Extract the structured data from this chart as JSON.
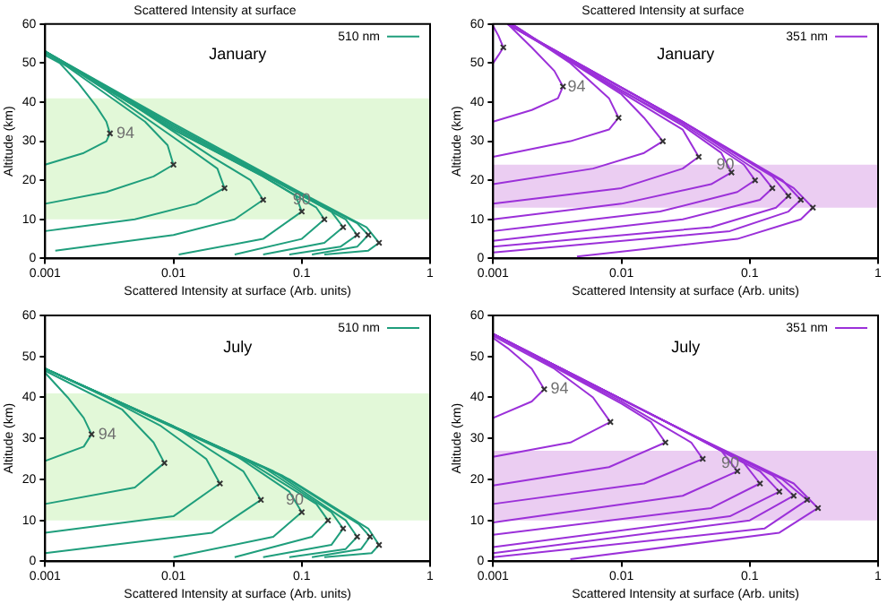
{
  "chart_data": [
    {
      "type": "line",
      "title": "Scattered Intensity at surface",
      "subtitle": "January",
      "xlabel": "Scattered Intensity at surface (Arb. units)",
      "ylabel": "Altitude (km)",
      "log": "x",
      "xlim": [
        0.001,
        1
      ],
      "xticks": [
        0.001,
        0.01,
        0.1,
        1
      ],
      "ylim": [
        0,
        60
      ],
      "yticks": [
        0,
        10,
        20,
        30,
        40,
        50,
        60
      ],
      "grid": false,
      "legend": "top right",
      "bands": [
        {
          "axis": "y",
          "from": 10,
          "to": 41,
          "color": "#e2f8d8"
        }
      ],
      "annotations": [
        {
          "text": "94",
          "x": 0.0036,
          "y": 32
        },
        {
          "text": "90",
          "x": 0.085,
          "y": 15
        }
      ],
      "series": [
        {
          "name": "510 nm",
          "color": "#1f9e7c",
          "x": [
            0.001,
            0.002,
            0.003,
            0.0032,
            0.003,
            0.0025,
            0.0018,
            0.0013,
            0.001
          ],
          "values": [
            24,
            27,
            30,
            32,
            35,
            39,
            45,
            50,
            52
          ]
        },
        {
          "color": "#1f9e7c",
          "x": [
            0.001,
            0.003,
            0.007,
            0.01,
            0.009,
            0.006,
            0.003,
            0.0015,
            0.001
          ],
          "values": [
            14,
            17,
            21,
            24,
            29,
            35,
            42,
            49,
            52.5
          ]
        },
        {
          "color": "#1f9e7c",
          "x": [
            0.001,
            0.005,
            0.015,
            0.025,
            0.022,
            0.01,
            0.003,
            0.001
          ],
          "values": [
            7,
            10,
            14,
            18,
            23,
            31,
            43,
            53
          ]
        },
        {
          "color": "#1f9e7c",
          "x": [
            0.0012,
            0.01,
            0.03,
            0.05,
            0.04,
            0.02,
            0.005,
            0.001
          ],
          "values": [
            2,
            6,
            10,
            15,
            20,
            26,
            39,
            53
          ]
        },
        {
          "color": "#1f9e7c",
          "x": [
            0.011,
            0.05,
            0.1,
            0.09,
            0.05,
            0.01,
            0.001
          ],
          "values": [
            1,
            5,
            12,
            16,
            21,
            33,
            53
          ]
        },
        {
          "color": "#1f9e7c",
          "x": [
            0.03,
            0.1,
            0.15,
            0.13,
            0.05,
            0.01,
            0.001
          ],
          "values": [
            1,
            5,
            10,
            13,
            21,
            33,
            53
          ]
        },
        {
          "color": "#1f9e7c",
          "x": [
            0.05,
            0.15,
            0.21,
            0.17,
            0.06,
            0.01,
            0.001
          ],
          "values": [
            1,
            4,
            8,
            12,
            20,
            33.5,
            53
          ]
        },
        {
          "color": "#1f9e7c",
          "x": [
            0.08,
            0.2,
            0.27,
            0.22,
            0.07,
            0.01,
            0.001
          ],
          "values": [
            1,
            3,
            6,
            10,
            19,
            34,
            53
          ]
        },
        {
          "color": "#1f9e7c",
          "x": [
            0.12,
            0.27,
            0.33,
            0.27,
            0.08,
            0.01,
            0.001
          ],
          "values": [
            1,
            3,
            6,
            9,
            18,
            34,
            53
          ]
        },
        {
          "color": "#1f9e7c",
          "x": [
            0.15,
            0.33,
            0.4,
            0.32,
            0.09,
            0.01,
            0.001
          ],
          "values": [
            1,
            2,
            4,
            8,
            17.5,
            34.5,
            53
          ]
        },
        {
          "type": "scatter",
          "marker": "cross",
          "color": "#333333",
          "x": [
            0.0032,
            0.01,
            0.025,
            0.05,
            0.1,
            0.15,
            0.21,
            0.27,
            0.33,
            0.4
          ],
          "values": [
            32,
            24,
            18,
            15,
            12,
            10,
            8,
            6,
            6,
            4
          ]
        }
      ]
    },
    {
      "type": "line",
      "title": "Scattered Intensity at surface",
      "subtitle": "January",
      "xlabel": "Scattered Intensity at surface (Arb. units)",
      "ylabel": "Altitude (km)",
      "log": "x",
      "xlim": [
        0.001,
        1
      ],
      "xticks": [
        0.001,
        0.01,
        0.1,
        1
      ],
      "ylim": [
        0,
        60
      ],
      "yticks": [
        0,
        10,
        20,
        30,
        40,
        50,
        60
      ],
      "grid": false,
      "legend": "top right",
      "bands": [
        {
          "axis": "y",
          "from": 13,
          "to": 24,
          "color": "#ebcdf2"
        }
      ],
      "annotations": [
        {
          "text": "94",
          "x": 0.0038,
          "y": 44
        },
        {
          "text": "90",
          "x": 0.055,
          "y": 24
        }
      ],
      "series": [
        {
          "name": "351 nm",
          "color": "#9b30d9",
          "x": [
            0.001,
            0.0011,
            0.0012,
            0.0011,
            0.001
          ],
          "values": [
            50,
            52,
            54,
            57,
            59.5
          ]
        },
        {
          "color": "#9b30d9",
          "x": [
            0.001,
            0.002,
            0.0032,
            0.0035,
            0.003,
            0.002,
            0.0013
          ],
          "values": [
            35,
            38,
            41,
            44,
            48,
            54,
            60
          ]
        },
        {
          "color": "#9b30d9",
          "x": [
            0.001,
            0.004,
            0.008,
            0.0095,
            0.008,
            0.004,
            0.0014
          ],
          "values": [
            26,
            30,
            33,
            36,
            41,
            50,
            60
          ]
        },
        {
          "color": "#9b30d9",
          "x": [
            0.001,
            0.006,
            0.015,
            0.021,
            0.015,
            0.01,
            0.003,
            0.0014
          ],
          "values": [
            19,
            23,
            27,
            30,
            36,
            42,
            53,
            60
          ]
        },
        {
          "color": "#9b30d9",
          "x": [
            0.001,
            0.01,
            0.03,
            0.04,
            0.03,
            0.01,
            0.003,
            0.0014
          ],
          "values": [
            14,
            18,
            23,
            26,
            33,
            42.5,
            53,
            60
          ]
        },
        {
          "color": "#9b30d9",
          "x": [
            0.001,
            0.01,
            0.05,
            0.072,
            0.06,
            0.03,
            0.01,
            0.0013
          ],
          "values": [
            10,
            14,
            19,
            22,
            27,
            34,
            43,
            60
          ]
        },
        {
          "color": "#9b30d9",
          "x": [
            0.001,
            0.02,
            0.08,
            0.11,
            0.09,
            0.03,
            0.01,
            0.0013
          ],
          "values": [
            7,
            12,
            17,
            20,
            24,
            34.5,
            43,
            60
          ]
        },
        {
          "color": "#9b30d9",
          "x": [
            0.001,
            0.03,
            0.12,
            0.15,
            0.12,
            0.03,
            0.0013
          ],
          "values": [
            4.5,
            10,
            15,
            18,
            22,
            35,
            60
          ]
        },
        {
          "color": "#9b30d9",
          "x": [
            0.001,
            0.05,
            0.16,
            0.2,
            0.15,
            0.03,
            0.0013
          ],
          "values": [
            3,
            8,
            13,
            16,
            21,
            35,
            60
          ]
        },
        {
          "color": "#9b30d9",
          "x": [
            0.001,
            0.07,
            0.2,
            0.25,
            0.18,
            0.03,
            0.0013
          ],
          "values": [
            1.5,
            7,
            12,
            15,
            20,
            35,
            60
          ]
        },
        {
          "color": "#9b30d9",
          "x": [
            0.0045,
            0.08,
            0.25,
            0.31,
            0.22,
            0.03,
            0.0013
          ],
          "values": [
            0.5,
            5,
            10,
            13,
            18,
            35,
            60
          ]
        },
        {
          "type": "scatter",
          "marker": "cross",
          "color": "#333333",
          "x": [
            0.0012,
            0.0035,
            0.0095,
            0.021,
            0.04,
            0.072,
            0.11,
            0.15,
            0.2,
            0.25,
            0.31
          ],
          "values": [
            54,
            44,
            36,
            30,
            26,
            22,
            20,
            18,
            16,
            15,
            13
          ]
        }
      ]
    },
    {
      "type": "line",
      "subtitle": "July",
      "xlabel": "Scattered Intensity at surface (Arb. units)",
      "ylabel": "Altitude (km)",
      "log": "x",
      "xlim": [
        0.001,
        1
      ],
      "xticks": [
        0.001,
        0.01,
        0.1,
        1
      ],
      "ylim": [
        0,
        60
      ],
      "yticks": [
        0,
        10,
        20,
        30,
        40,
        50,
        60
      ],
      "grid": false,
      "legend": "top right",
      "bands": [
        {
          "axis": "y",
          "from": 10,
          "to": 41,
          "color": "#e2f8d8"
        }
      ],
      "annotations": [
        {
          "text": "94",
          "x": 0.0026,
          "y": 31
        },
        {
          "text": "90",
          "x": 0.075,
          "y": 15
        }
      ],
      "series": [
        {
          "name": "510 nm",
          "color": "#1f9e7c",
          "x": [
            0.001,
            0.002,
            0.0023,
            0.002,
            0.0015,
            0.001
          ],
          "values": [
            24.5,
            28,
            31,
            35,
            40,
            46
          ]
        },
        {
          "color": "#1f9e7c",
          "x": [
            0.001,
            0.005,
            0.0085,
            0.007,
            0.004,
            0.001
          ],
          "values": [
            14,
            18,
            24,
            29,
            37,
            46.5
          ]
        },
        {
          "color": "#1f9e7c",
          "x": [
            0.001,
            0.01,
            0.023,
            0.018,
            0.008,
            0.003,
            0.001
          ],
          "values": [
            7,
            11,
            19,
            25,
            33,
            40,
            47
          ]
        },
        {
          "color": "#1f9e7c",
          "x": [
            0.001,
            0.02,
            0.048,
            0.035,
            0.01,
            0.001
          ],
          "values": [
            2,
            7,
            15,
            22,
            33,
            47
          ]
        },
        {
          "color": "#1f9e7c",
          "x": [
            0.01,
            0.06,
            0.1,
            0.08,
            0.03,
            0.001
          ],
          "values": [
            1,
            6,
            12,
            17,
            26,
            47
          ]
        },
        {
          "color": "#1f9e7c",
          "x": [
            0.03,
            0.12,
            0.16,
            0.13,
            0.04,
            0.001
          ],
          "values": [
            1,
            6,
            10,
            14,
            24,
            47
          ]
        },
        {
          "color": "#1f9e7c",
          "x": [
            0.05,
            0.17,
            0.21,
            0.17,
            0.05,
            0.001
          ],
          "values": [
            1,
            4,
            8,
            12,
            23,
            47
          ]
        },
        {
          "color": "#1f9e7c",
          "x": [
            0.08,
            0.22,
            0.27,
            0.22,
            0.06,
            0.001
          ],
          "values": [
            1,
            3,
            6,
            10,
            22,
            47
          ]
        },
        {
          "color": "#1f9e7c",
          "x": [
            0.12,
            0.29,
            0.34,
            0.28,
            0.07,
            0.001
          ],
          "values": [
            1,
            3,
            6,
            9,
            21,
            47
          ]
        },
        {
          "color": "#1f9e7c",
          "x": [
            0.15,
            0.35,
            0.4,
            0.33,
            0.08,
            0.001
          ],
          "values": [
            1,
            2,
            4,
            8,
            20,
            47
          ]
        },
        {
          "type": "scatter",
          "marker": "cross",
          "color": "#333333",
          "x": [
            0.0023,
            0.0085,
            0.023,
            0.048,
            0.1,
            0.16,
            0.21,
            0.27,
            0.34,
            0.4
          ],
          "values": [
            31,
            24,
            19,
            15,
            12,
            10,
            8,
            6,
            6,
            4
          ]
        }
      ]
    },
    {
      "type": "line",
      "subtitle": "July",
      "xlabel": "Scattered Intensity at surface (Arb. units)",
      "ylabel": "Altitude (km)",
      "log": "x",
      "xlim": [
        0.001,
        1
      ],
      "xticks": [
        0.001,
        0.01,
        0.1,
        1
      ],
      "ylim": [
        0,
        60
      ],
      "yticks": [
        0,
        10,
        20,
        30,
        40,
        50,
        60
      ],
      "grid": false,
      "legend": "top right",
      "bands": [
        {
          "axis": "y",
          "from": 10,
          "to": 27,
          "color": "#ebcdf2"
        }
      ],
      "annotations": [
        {
          "text": "94",
          "x": 0.0028,
          "y": 42
        },
        {
          "text": "90",
          "x": 0.06,
          "y": 24
        }
      ],
      "series": [
        {
          "name": "351 nm",
          "color": "#9b30d9",
          "x": [
            0.001,
            0.002,
            0.0025,
            0.002,
            0.0013,
            0.001
          ],
          "values": [
            35,
            39,
            42,
            47,
            52,
            54.5
          ]
        },
        {
          "color": "#9b30d9",
          "x": [
            0.001,
            0.004,
            0.0082,
            0.006,
            0.003,
            0.001
          ],
          "values": [
            25.5,
            29,
            34,
            40,
            47,
            55
          ]
        },
        {
          "color": "#9b30d9",
          "x": [
            0.001,
            0.008,
            0.022,
            0.017,
            0.01,
            0.001
          ],
          "values": [
            18.5,
            23,
            29,
            34,
            38.5,
            55.5
          ]
        },
        {
          "color": "#9b30d9",
          "x": [
            0.001,
            0.015,
            0.043,
            0.035,
            0.01,
            0.001
          ],
          "values": [
            14,
            19,
            25,
            29,
            39,
            55.5
          ]
        },
        {
          "color": "#9b30d9",
          "x": [
            0.001,
            0.03,
            0.08,
            0.06,
            0.03,
            0.001
          ],
          "values": [
            9.5,
            16,
            22,
            27,
            32,
            55.5
          ]
        },
        {
          "color": "#9b30d9",
          "x": [
            0.001,
            0.05,
            0.12,
            0.09,
            0.03,
            0.001
          ],
          "values": [
            6.5,
            13,
            19,
            24,
            32,
            55.5
          ]
        },
        {
          "color": "#9b30d9",
          "x": [
            0.001,
            0.07,
            0.17,
            0.12,
            0.03,
            0.001
          ],
          "values": [
            3.5,
            11,
            17,
            22,
            32,
            55.5
          ]
        },
        {
          "color": "#9b30d9",
          "x": [
            0.001,
            0.1,
            0.22,
            0.15,
            0.03,
            0.001
          ],
          "values": [
            2,
            10,
            16,
            21,
            32,
            55.5
          ]
        },
        {
          "color": "#9b30d9",
          "x": [
            0.001,
            0.13,
            0.28,
            0.18,
            0.03,
            0.001
          ],
          "values": [
            1,
            8,
            15,
            20,
            32,
            55.5
          ]
        },
        {
          "color": "#9b30d9",
          "x": [
            0.004,
            0.17,
            0.34,
            0.22,
            0.03,
            0.001
          ],
          "values": [
            0.5,
            7,
            13,
            19,
            32,
            55.5
          ]
        },
        {
          "type": "scatter",
          "marker": "cross",
          "color": "#333333",
          "x": [
            0.0025,
            0.0082,
            0.022,
            0.043,
            0.08,
            0.12,
            0.17,
            0.22,
            0.28,
            0.34
          ],
          "values": [
            42,
            34,
            29,
            25,
            22,
            19,
            17,
            16,
            15,
            13
          ]
        }
      ]
    }
  ]
}
